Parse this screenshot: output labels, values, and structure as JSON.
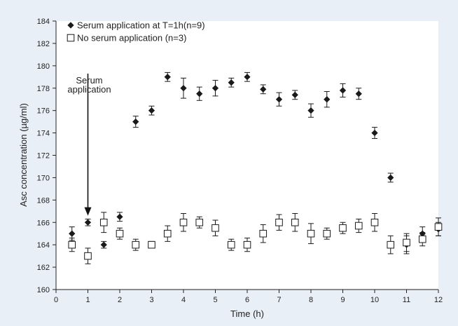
{
  "figure": {
    "background": "#e8eff7",
    "plot_background": "#ffffff"
  },
  "chart_data": {
    "type": "scatter",
    "title": "",
    "xlabel": "Time (h)",
    "ylabel": "Asc concentration (µg/ml)",
    "xlim": [
      0,
      12
    ],
    "ylim": [
      160,
      184
    ],
    "xticks": [
      0,
      1,
      2,
      3,
      4,
      5,
      6,
      7,
      8,
      9,
      10,
      11,
      12
    ],
    "yticks": [
      160,
      162,
      164,
      166,
      168,
      170,
      172,
      174,
      176,
      178,
      180,
      182,
      184
    ],
    "grid": false,
    "error_bars": true,
    "legend": "top-left",
    "series": [
      {
        "name": "Serum application at T=1h(n=9)",
        "marker": "filled-diamond",
        "color": "#1a1a1a",
        "x": [
          0.5,
          1,
          1.5,
          2,
          2.5,
          3,
          3.5,
          4,
          4.5,
          5,
          5.5,
          6,
          6.5,
          7,
          7.5,
          8,
          8.5,
          9,
          9.5,
          10,
          10.5,
          11,
          11.5,
          12
        ],
        "y": [
          165.0,
          166.0,
          164.0,
          166.5,
          175.0,
          176.0,
          179.0,
          178.0,
          177.5,
          178.0,
          178.5,
          179.0,
          177.9,
          177.0,
          177.4,
          176.0,
          177.0,
          177.8,
          177.5,
          174.0,
          170.0,
          164.0,
          165.0,
          165.4
        ],
        "err": [
          0.6,
          0.3,
          0.3,
          0.4,
          0.5,
          0.4,
          0.4,
          0.9,
          0.6,
          0.7,
          0.4,
          0.4,
          0.4,
          0.6,
          0.4,
          0.6,
          0.7,
          0.6,
          0.5,
          0.5,
          0.4,
          0.8,
          0.6,
          0.6
        ]
      },
      {
        "name": "No serum application (n=3)",
        "marker": "open-square",
        "color": "#1a1a1a",
        "x": [
          0.5,
          1,
          1.5,
          2,
          2.5,
          3,
          3.5,
          4,
          4.5,
          5,
          5.5,
          6,
          6.5,
          7,
          7.5,
          8,
          8.5,
          9,
          9.5,
          10,
          10.5,
          11,
          11.5,
          12
        ],
        "y": [
          164.0,
          163.0,
          166.0,
          165.0,
          164.0,
          164.0,
          165.0,
          166.0,
          166.0,
          165.5,
          164.0,
          164.0,
          165.0,
          166.0,
          166.0,
          165.0,
          165.0,
          165.5,
          165.7,
          166.0,
          164.0,
          164.2,
          164.5,
          165.6
        ],
        "err": [
          0.6,
          0.7,
          0.9,
          0.5,
          0.5,
          0.3,
          0.7,
          0.8,
          0.5,
          0.7,
          0.5,
          0.6,
          0.8,
          0.7,
          0.8,
          0.9,
          0.5,
          0.5,
          0.6,
          0.8,
          0.8,
          0.8,
          0.6,
          0.8
        ]
      }
    ],
    "annotations": [
      {
        "text_lines": [
          "Serum",
          "application"
        ],
        "arrow_x": 1,
        "arrow_from_y": 179.3,
        "arrow_to_y": 166.6
      }
    ]
  }
}
